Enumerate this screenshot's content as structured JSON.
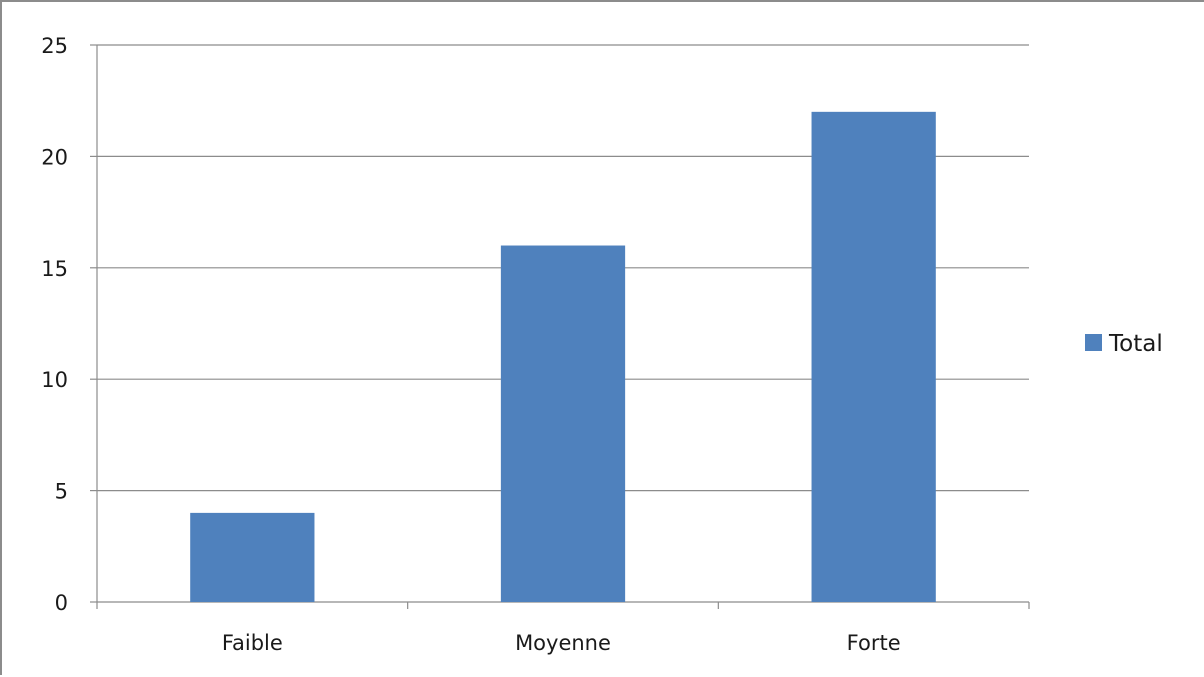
{
  "chart_data": {
    "type": "bar",
    "categories": [
      "Faible",
      "Moyenne",
      "Forte"
    ],
    "series": [
      {
        "name": "Total",
        "values": [
          4,
          16,
          22
        ],
        "color": "#4f81bd"
      }
    ],
    "title": "",
    "xlabel": "",
    "ylabel": "",
    "ylim": [
      0,
      25
    ],
    "yticks": [
      "0",
      "5",
      "10",
      "15",
      "20",
      "25"
    ],
    "grid": true,
    "legend_position": "right"
  }
}
